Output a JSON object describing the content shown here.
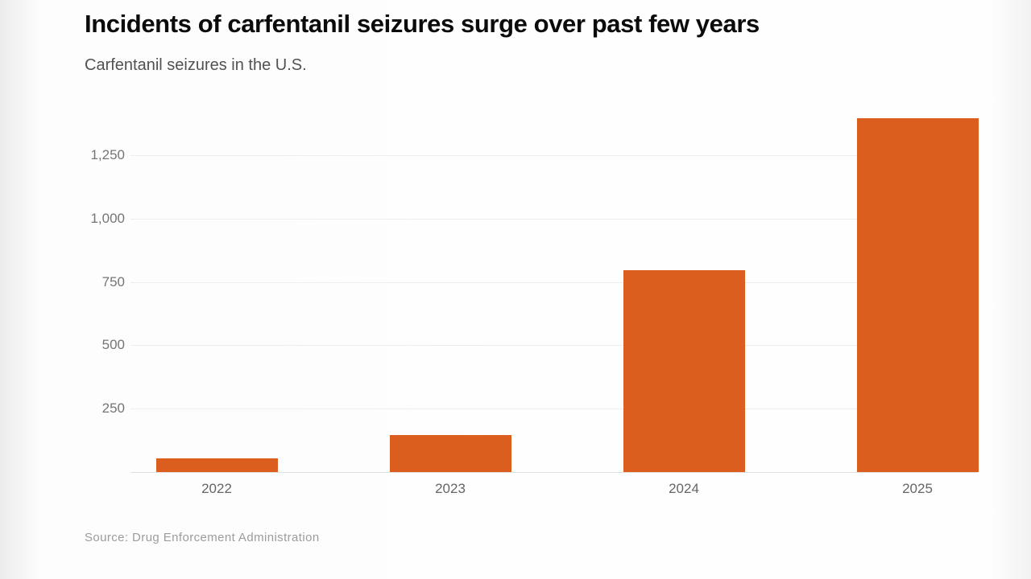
{
  "page": {
    "title": "Incidents of carfentanil seizures surge over past few years",
    "subtitle": "Carfentanil seizures in the U.S.",
    "source": "Source: Drug Enforcement Administration"
  },
  "colors": {
    "bar": "#DB5E1E",
    "title_text": "#0b0b0b",
    "subtitle_text": "#525252",
    "axis_label": "#6e6e6e",
    "gridline": "#eeeeee",
    "baseline": "#e0e0e0",
    "source_text": "#9c9c9c",
    "background": "#fdfdfd"
  },
  "chart_data": {
    "type": "bar",
    "title": "Incidents of carfentanil seizures surge over past few years",
    "subtitle": "Carfentanil seizures in the U.S.",
    "source": "Source: Drug Enforcement Administration",
    "categories": [
      "2022",
      "2023",
      "2024",
      "2025"
    ],
    "values": [
      55,
      145,
      795,
      1395
    ],
    "xlabel": "",
    "ylabel": "",
    "ylim": [
      0,
      1400
    ],
    "yticks": [
      250,
      500,
      750,
      1000,
      1250
    ],
    "ytick_labels": [
      "250",
      "500",
      "750",
      "1,000",
      "1,250"
    ],
    "grid": "horizontal",
    "legend": "none",
    "bar_color": "#DB5E1E"
  }
}
